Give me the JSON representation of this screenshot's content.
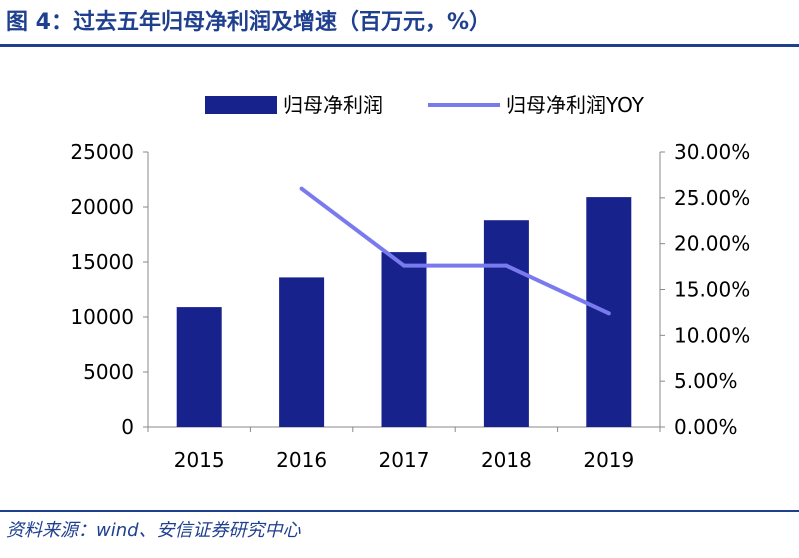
{
  "figure": {
    "title": "图 4：过去五年归母净利润及增速（百万元，%）",
    "source": "资料来源：wind、安信证券研究中心"
  },
  "colors": {
    "bar": "#18228c",
    "line": "#7a7aef",
    "accent": "#1f3f8f",
    "axis": "#888888",
    "text": "#000000"
  },
  "chart_data": {
    "type": "bar",
    "categories": [
      "2015",
      "2016",
      "2017",
      "2018",
      "2019"
    ],
    "series": [
      {
        "name": "归母净利润",
        "type": "bar",
        "axis": "left",
        "values": [
          10900,
          13600,
          15900,
          18800,
          20900
        ]
      },
      {
        "name": "归母净利润YOY",
        "type": "line",
        "axis": "right",
        "values": [
          null,
          26.0,
          17.6,
          17.6,
          12.4
        ]
      }
    ],
    "y_left": {
      "min": 0,
      "max": 25000,
      "ticks": [
        0,
        5000,
        10000,
        15000,
        20000,
        25000
      ],
      "tick_labels": [
        "0",
        "5000",
        "10000",
        "15000",
        "20000",
        "25000"
      ]
    },
    "y_right": {
      "min": 0,
      "max": 30,
      "ticks": [
        0,
        5,
        10,
        15,
        20,
        25,
        30
      ],
      "tick_labels": [
        "0.00%",
        "5.00%",
        "10.00%",
        "15.00%",
        "20.00%",
        "25.00%",
        "30.00%"
      ]
    },
    "grid": false,
    "legend_position": "top-center"
  }
}
